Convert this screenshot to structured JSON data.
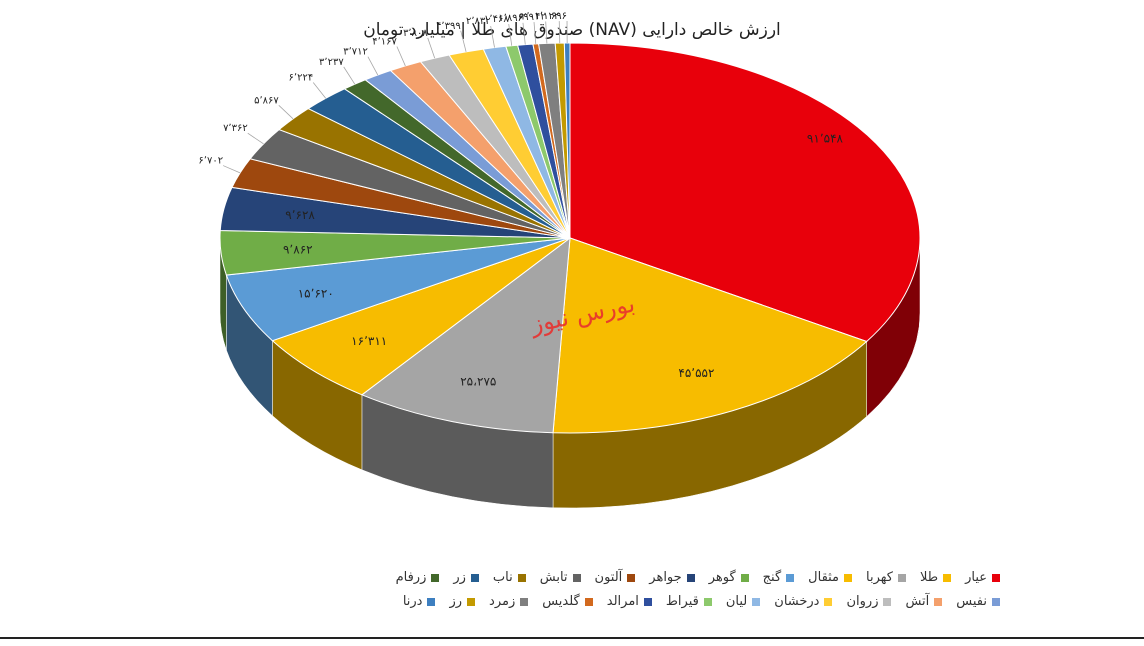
{
  "watermark_text": "بورس نیوز",
  "chart_data": {
    "type": "pie",
    "title": "ارزش خالص دارایی (NAV) صندوق های طلا | میلیارد تومان",
    "slices": [
      {
        "name": "عیار",
        "value": 91548,
        "label": "۹۱٬۵۴۸",
        "color": "#e8000b"
      },
      {
        "name": "طلا",
        "value": 45552,
        "label": "۴۵٬۵۵۲",
        "color": "#f7bc00"
      },
      {
        "name": "کهربا",
        "value": 25275,
        "label": "۲۵،۲۷۵",
        "color": "#a5a5a5"
      },
      {
        "name": "مثقال",
        "value": 16311,
        "label": "۱۶٬۳۱۱",
        "color": "#f7bc00"
      },
      {
        "name": "گنج",
        "value": 15620,
        "label": "۱۵٬۶۲۰",
        "color": "#5b9bd5"
      },
      {
        "name": "گوهر",
        "value": 9862,
        "label": "۹٬۸۶۲",
        "color": "#70ad47"
      },
      {
        "name": "جواهر",
        "value": 9628,
        "label": "۹٬۶۲۸",
        "color": "#264478"
      },
      {
        "name": "آلتون",
        "value": 6702,
        "label": "۶٬۷۰۲",
        "color": "#9e480e"
      },
      {
        "name": "تابش",
        "value": 7362,
        "label": "۷٬۳۶۲",
        "color": "#636363"
      },
      {
        "name": "ناب",
        "value": 5867,
        "label": "۵٬۸۶۷",
        "color": "#997300"
      },
      {
        "name": "زر",
        "value": 6224,
        "label": "۶٬۲۲۴",
        "color": "#255e91"
      },
      {
        "name": "زرفام",
        "value": 3237,
        "label": "۳٬۲۳۷",
        "color": "#43682b"
      },
      {
        "name": "نفیس",
        "value": 3712,
        "label": "۳٬۷۱۲",
        "color": "#7a9cd6"
      },
      {
        "name": "آتش",
        "value": 4167,
        "label": "۴٬۱۶۷",
        "color": "#f4a06c"
      },
      {
        "name": "زروان",
        "value": 3808,
        "label": "۳٬۸۰۸",
        "color": "#bdbdbd"
      },
      {
        "name": "درخشان",
        "value": 4399,
        "label": "۴٬۳۹۹",
        "color": "#ffcd33"
      },
      {
        "name": "لیان",
        "value": 2832,
        "label": "۲٬۸۳۲",
        "color": "#8fb8e4"
      },
      {
        "name": "قیراط",
        "value": 1468,
        "label": "۱٬۴۶۸",
        "color": "#8dc96c"
      },
      {
        "name": "امرالد",
        "value": 1896,
        "label": "۱٬۸۹۶",
        "color": "#2f4f9e"
      },
      {
        "name": "گلدیس",
        "value": 699,
        "label": "۶۹۹",
        "color": "#d2691e"
      },
      {
        "name": "زمرد",
        "value": 2042,
        "label": "۲٬۰۴۲",
        "color": "#7f7f7f"
      },
      {
        "name": "رز",
        "value": 1122,
        "label": "۱٬۱۲۲",
        "color": "#c39a00"
      },
      {
        "name": "درنا",
        "value": 696,
        "label": "۶۹۶",
        "color": "#3d7fc0"
      }
    ],
    "legend_position": "bottom"
  }
}
